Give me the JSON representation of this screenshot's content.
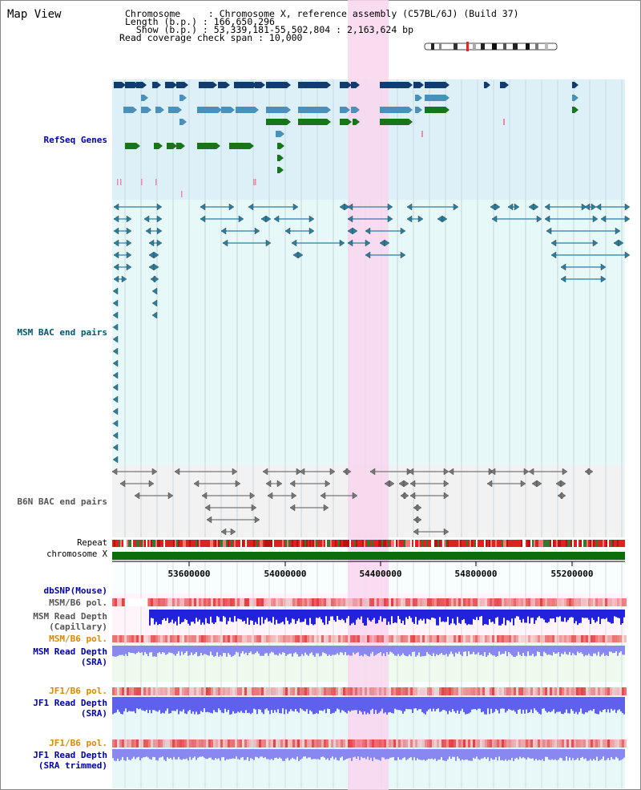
{
  "view_title": "Map View",
  "header": {
    "chromosome_line": "Chromosome     : Chromosome X, reference assembly (C57BL/6J) (Build 37)",
    "length_line": "Length (b.p.) : 166,650,296",
    "show_line": "  Show (b.p.) : 53,339,181-55,502,804 : 2,163,624 bp",
    "coverage_line": "Read coverage check span : 10,000"
  },
  "tracks": {
    "refseq": "RefSeq Genes",
    "msm_bac": "MSM BAC end pairs",
    "b6n_bac": "B6N BAC end pairs",
    "repeat": "Repeat",
    "chromosome": "chromosome X",
    "dbsnp": "dbSNP(Mouse)",
    "msm_b6_pol_cap": "MSM/B6 pol.",
    "msm_depth_cap": "MSM Read Depth\n(Capillary)",
    "msm_b6_pol_sra": "MSM/B6 pol.",
    "msm_depth_sra": "MSM Read Depth\n(SRA)",
    "jf1_b6_pol_sra": "JF1/B6 pol.",
    "jf1_depth_sra": "JF1 Read Depth\n(SRA)",
    "jf1_b6_pol_trim": "JF1/B6 pol.",
    "jf1_depth_trim": "JF1 Read Depth\n(SRA trimmed)"
  },
  "axis_ticks": [
    "53600000",
    "54000000",
    "54400000",
    "54800000",
    "55200000"
  ],
  "colors": {
    "label_blue": "#0000aa",
    "label_teal": "#005570",
    "label_gray": "#555555",
    "label_orange": "#dd8800",
    "refseq_bg": "#ddf0f8",
    "bac_bg": "#e6f8f8",
    "b6n_bg": "#f2f2f2",
    "highlight": "#f9d6ef",
    "gene_dark": "#123c6e",
    "gene_mid": "#4a90b8",
    "gene_green": "#197519",
    "chrom_green": "#0a6e0a",
    "depth_blue": "#2222dd",
    "depth_light": "#8888f0"
  }
}
